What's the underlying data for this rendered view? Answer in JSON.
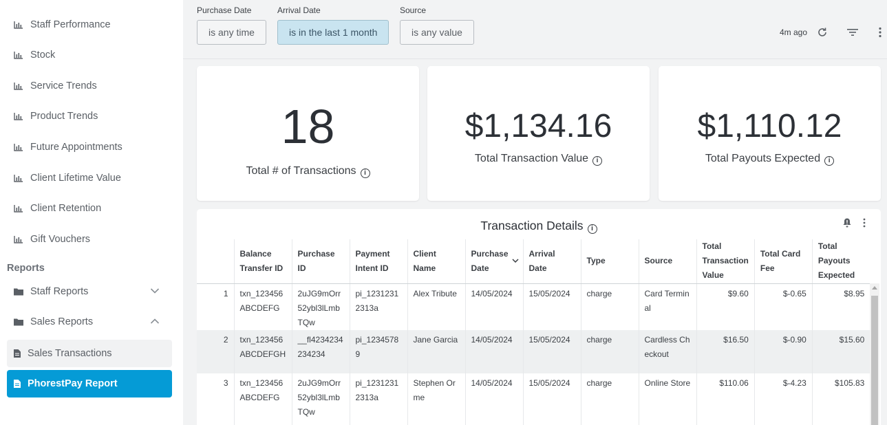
{
  "sidebar": {
    "report_items": [
      {
        "label": "Staff Performance",
        "icon": "bar-chart-icon"
      },
      {
        "label": "Stock",
        "icon": "bar-chart-icon"
      },
      {
        "label": "Service Trends",
        "icon": "bar-chart-icon"
      },
      {
        "label": "Product Trends",
        "icon": "bar-chart-icon"
      },
      {
        "label": "Future Appointments",
        "icon": "bar-chart-icon"
      },
      {
        "label": "Client Lifetime Value",
        "icon": "bar-chart-icon"
      },
      {
        "label": "Client Retention",
        "icon": "bar-chart-icon"
      },
      {
        "label": "Gift Vouchers",
        "icon": "bar-chart-icon"
      }
    ],
    "section_title": "Reports",
    "folders": [
      {
        "label": "Staff Reports",
        "icon": "folder-icon",
        "expanded": false
      },
      {
        "label": "Sales Reports",
        "icon": "folder-icon",
        "expanded": true
      }
    ],
    "sub_items": [
      {
        "label": "Sales Transactions",
        "icon": "document-icon",
        "active": false
      },
      {
        "label": "PhorestPay Report",
        "icon": "document-icon",
        "active": true
      }
    ]
  },
  "filters": [
    {
      "label": "Purchase Date",
      "value": "is any time",
      "active": false
    },
    {
      "label": "Arrival Date",
      "value": "is in the last 1 month",
      "active": true
    },
    {
      "label": "Source",
      "value": "is any value",
      "active": false
    }
  ],
  "toolbar": {
    "updated": "4m ago",
    "icons": [
      "refresh-icon",
      "filter-icon",
      "more-vertical-icon"
    ]
  },
  "kpis": [
    {
      "value": "18",
      "label": "Total # of Transactions"
    },
    {
      "value": "$1,134.16",
      "label": "Total Transaction Value"
    },
    {
      "value": "$1,110.12",
      "label": "Total Payouts Expected"
    }
  ],
  "table": {
    "title": "Transaction Details",
    "columns": [
      "",
      "Balance Transfer ID",
      "Purchase ID",
      "Payment Intent ID",
      "Client Name",
      "Purchase Date",
      "Arrival Date",
      "Type",
      "Source",
      "Total Transaction Value",
      "Total Card Fee",
      "Total Payouts Expected"
    ],
    "sorted_column": "Purchase Date",
    "rows": [
      [
        "1",
        "txn_123456ABCDEFG",
        "2uJG9mOrr52ybl3lLmbTQw",
        "pi_12312312313a",
        "Alex Tribute",
        "14/05/2024",
        "15/05/2024",
        "charge",
        "Card Terminal",
        "$9.60",
        "$-0.65",
        "$8.95"
      ],
      [
        "2",
        "txn_123456ABCDEFGH",
        "__fl4234234234234",
        "pi_12345789",
        "Jane Garcia",
        "14/05/2024",
        "15/05/2024",
        "charge",
        "Cardless Checkout",
        "$16.50",
        "$-0.90",
        "$15.60"
      ],
      [
        "3",
        "txn_123456ABCDEFG",
        "2uJG9mOrr52ybl3lLmbTQw",
        "pi_12312312313a",
        "Stephen Orme",
        "14/05/2024",
        "15/05/2024",
        "charge",
        "Online Store",
        "$110.06",
        "$-4.23",
        "$105.83"
      ]
    ]
  },
  "colors": {
    "accent": "#059bd6",
    "active_filter": "#c9e4f0",
    "page_bg": "#f2f3f4"
  }
}
